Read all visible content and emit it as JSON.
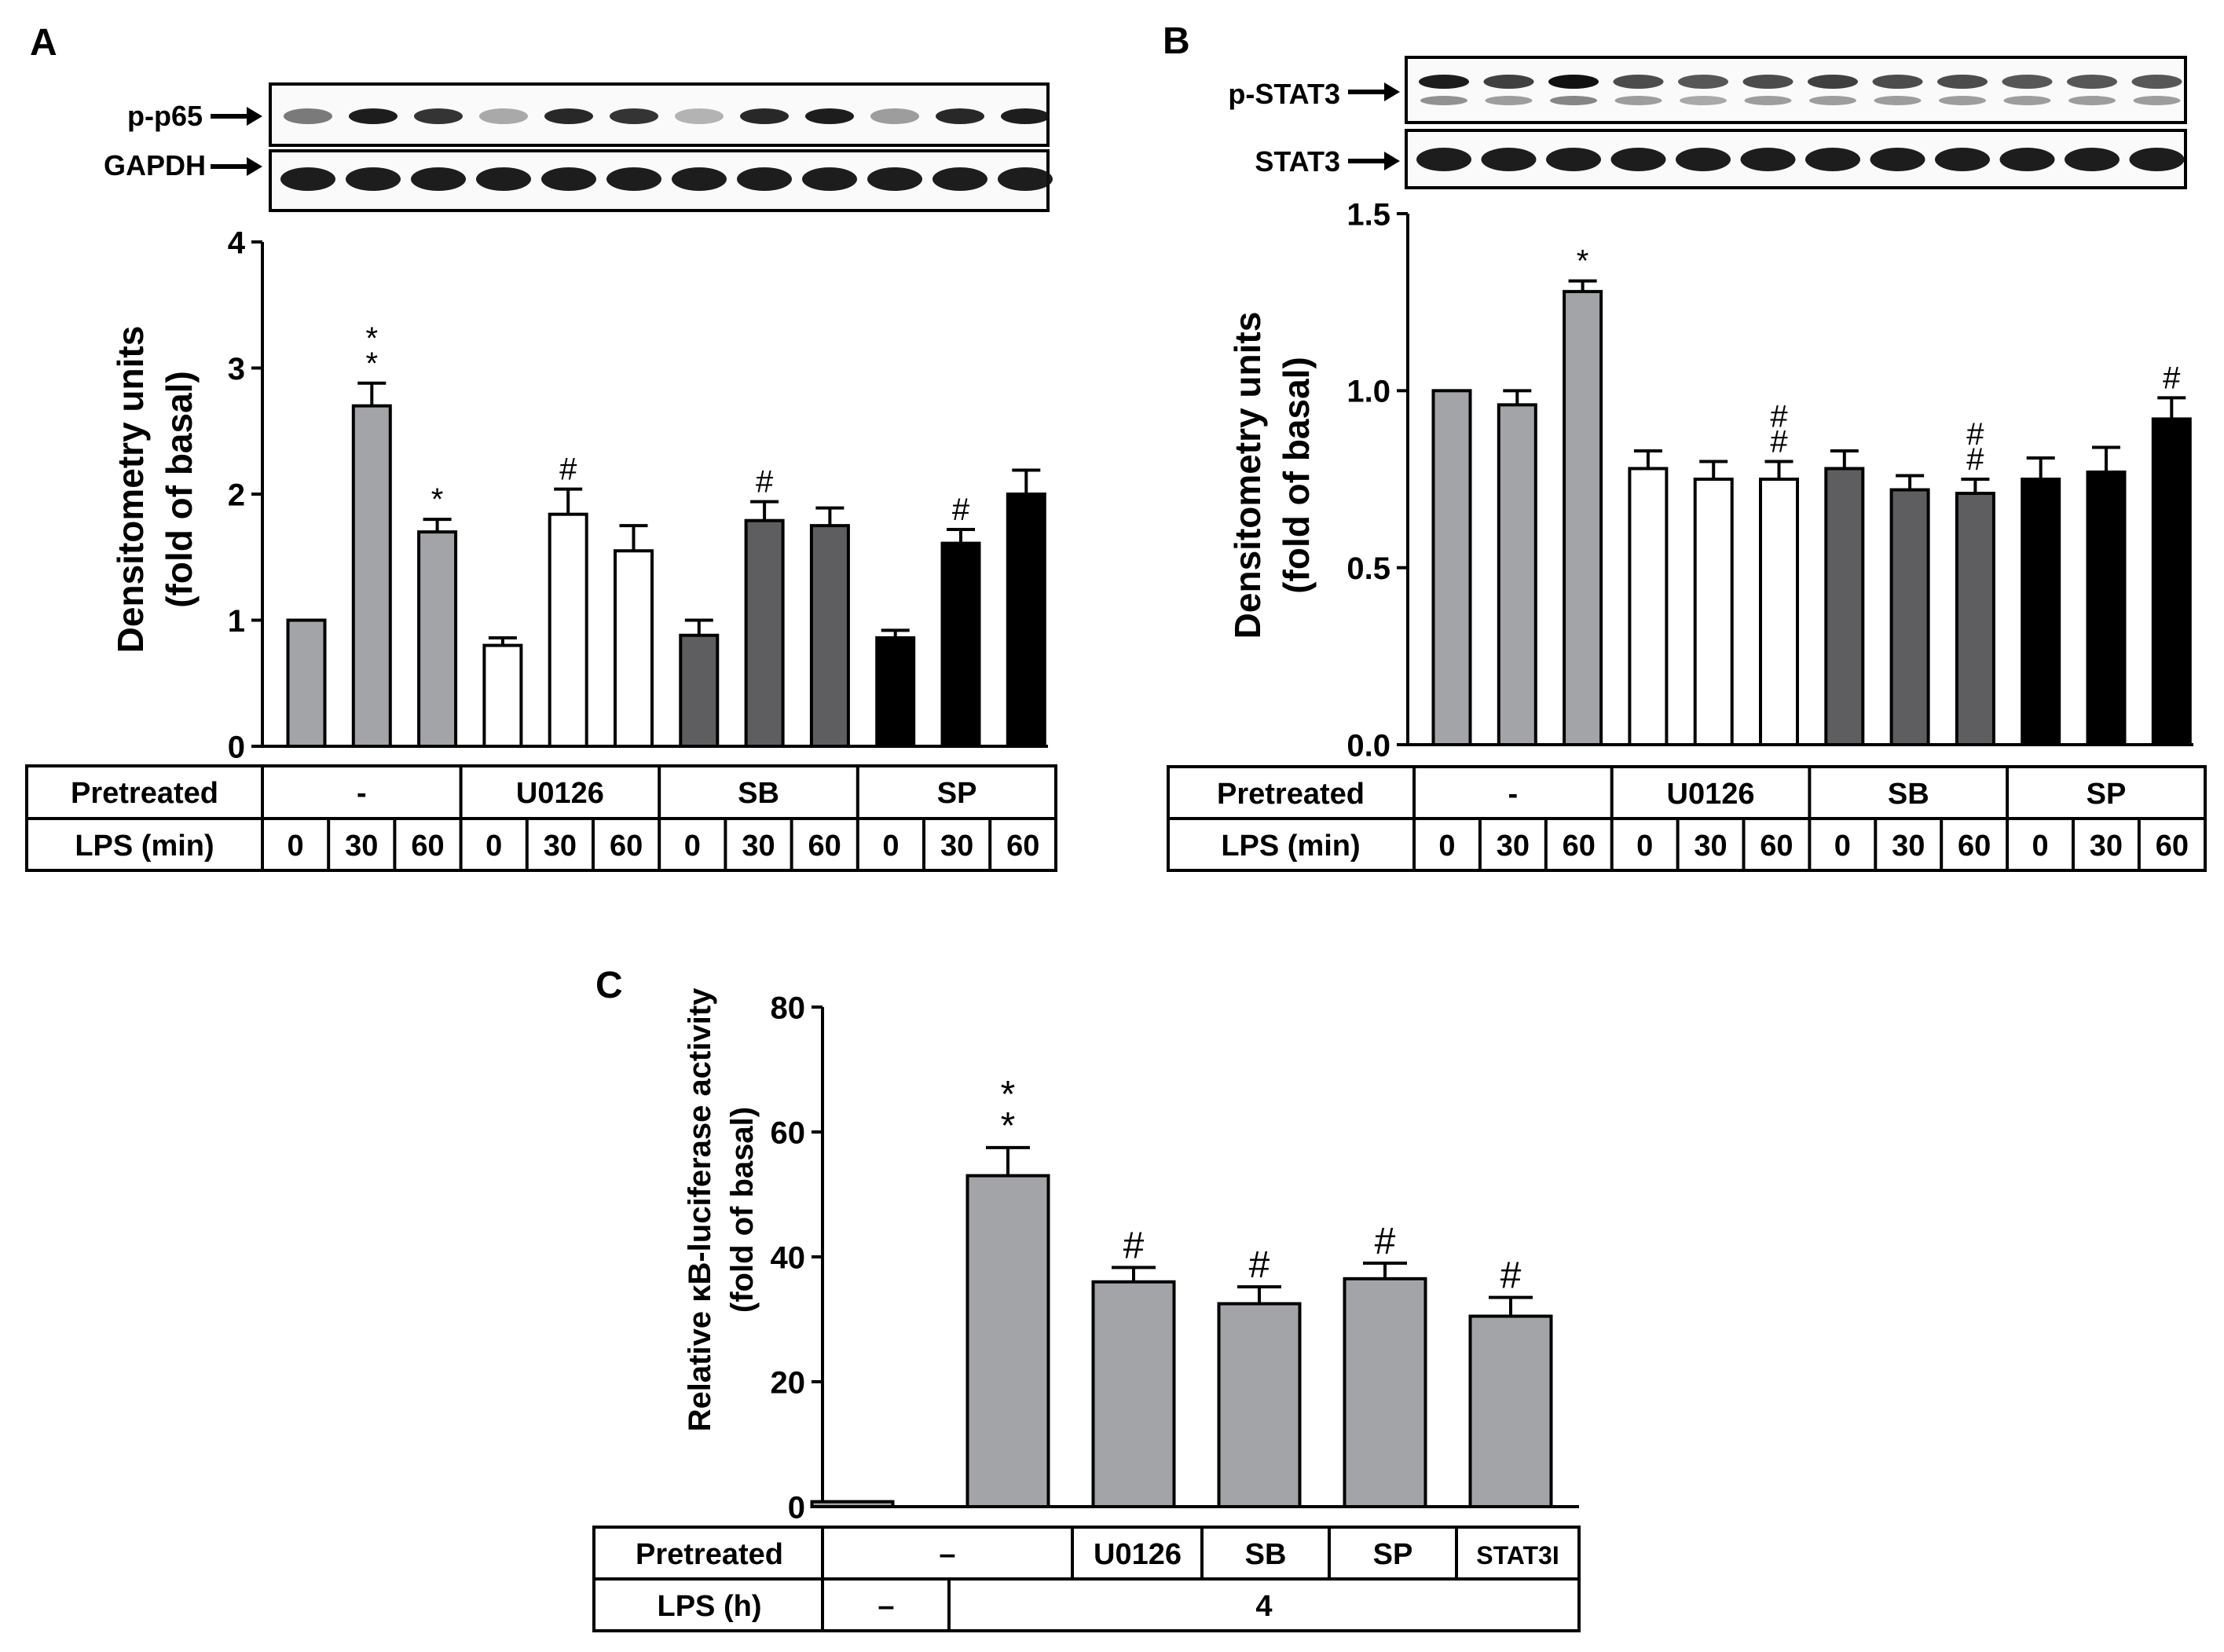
{
  "colors": {
    "gray": "#a3a4a8",
    "white": "#ffffff",
    "darkgray": "#5e5e61",
    "black": "#000000"
  },
  "panels": {
    "A": {
      "letter": "A",
      "blot_labels": [
        "p-p65",
        "GAPDH"
      ],
      "table": {
        "row1_label": "Pretreated",
        "row2_label": "LPS (min)",
        "groups": [
          "-",
          "U0126",
          "SB",
          "SP"
        ],
        "times": [
          "0",
          "30",
          "60",
          "0",
          "30",
          "60",
          "0",
          "30",
          "60",
          "0",
          "30",
          "60"
        ]
      }
    },
    "B": {
      "letter": "B",
      "blot_labels": [
        "p-STAT3",
        "STAT3"
      ],
      "table": {
        "row1_label": "Pretreated",
        "row2_label": "LPS (min)",
        "groups": [
          "-",
          "U0126",
          "SB",
          "SP"
        ],
        "times": [
          "0",
          "30",
          "60",
          "0",
          "30",
          "60",
          "0",
          "30",
          "60",
          "0",
          "30",
          "60"
        ]
      }
    },
    "C": {
      "letter": "C",
      "table": {
        "row1_label": "Pretreated",
        "row2_label": "LPS (h)",
        "groups": [
          "–",
          "U0126",
          "SB",
          "SP",
          "STAT3I"
        ],
        "lps": [
          "–",
          "4"
        ]
      }
    }
  },
  "chart_data": [
    {
      "panel": "A",
      "type": "bar",
      "ylabel": "Densitometry units",
      "ylabel2": "(fold of basal)",
      "ylim": [
        0,
        4
      ],
      "yticks": [
        "0",
        "1",
        "2",
        "3",
        "4"
      ],
      "values": [
        1.0,
        2.7,
        1.7,
        0.8,
        1.84,
        1.55,
        0.88,
        1.79,
        1.75,
        0.86,
        1.61,
        2.0
      ],
      "errors": [
        0,
        0.18,
        0.1,
        0.06,
        0.2,
        0.2,
        0.12,
        0.15,
        0.14,
        0.06,
        0.11,
        0.19
      ],
      "fills": [
        "gray",
        "gray",
        "gray",
        "white",
        "white",
        "white",
        "darkgray",
        "darkgray",
        "darkgray",
        "black",
        "black",
        "black"
      ],
      "annotations": [
        "",
        "*\n*",
        "*",
        "",
        "#",
        "",
        "",
        "#",
        "",
        "",
        "#",
        ""
      ]
    },
    {
      "panel": "B",
      "type": "bar",
      "ylabel": "Densitometry units",
      "ylabel2": "(fold of basal)",
      "ylim": [
        0,
        1.5
      ],
      "yticks": [
        "0.0",
        "0.5",
        "1.0",
        "1.5"
      ],
      "values": [
        1.0,
        0.96,
        1.28,
        0.78,
        0.75,
        0.75,
        0.78,
        0.72,
        0.71,
        0.75,
        0.77,
        0.92
      ],
      "errors": [
        0,
        0.04,
        0.03,
        0.05,
        0.05,
        0.05,
        0.05,
        0.04,
        0.04,
        0.06,
        0.07,
        0.06
      ],
      "fills": [
        "gray",
        "gray",
        "gray",
        "white",
        "white",
        "white",
        "darkgray",
        "darkgray",
        "darkgray",
        "black",
        "black",
        "black"
      ],
      "annotations": [
        "",
        "",
        "*",
        "",
        "",
        "#\n#",
        "",
        "",
        "#\n#",
        "",
        "",
        "#"
      ]
    },
    {
      "panel": "C",
      "type": "bar",
      "ylabel": "Relative κB-luciferase activity",
      "ylabel2": "(fold of basal)",
      "ylim": [
        0,
        80
      ],
      "yticks": [
        "0",
        "20",
        "40",
        "60",
        "80"
      ],
      "values": [
        0.8,
        53,
        36,
        32.5,
        36.5,
        30.5
      ],
      "errors": [
        0,
        4.5,
        2.3,
        2.7,
        2.5,
        3
      ],
      "fills": [
        "gray",
        "gray",
        "gray",
        "gray",
        "gray",
        "gray"
      ],
      "annotations": [
        "",
        "*\n*",
        "#",
        "#",
        "#",
        "#"
      ]
    }
  ]
}
